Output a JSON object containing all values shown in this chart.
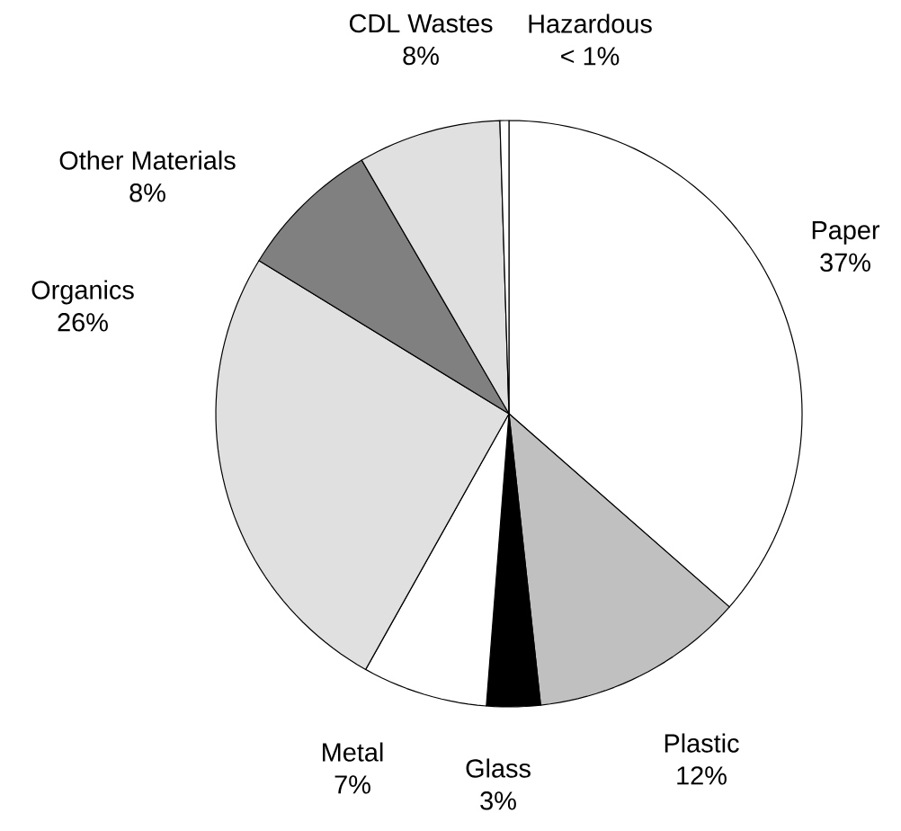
{
  "chart_data": {
    "type": "pie",
    "categories": [
      "Paper",
      "Plastic",
      "Glass",
      "Metal",
      "Organics",
      "Other Materials",
      "CDL Wastes",
      "Hazardous"
    ],
    "values": [
      37,
      12,
      3,
      7,
      26,
      8,
      8,
      0.5
    ],
    "value_labels": [
      "37%",
      "12%",
      "3%",
      "7%",
      "26%",
      "8%",
      "8%",
      "< 1%"
    ],
    "colors": [
      "#ffffff",
      "#c0c0c0",
      "#000000",
      "#ffffff",
      "#e0e0e0",
      "#808080",
      "#e0e0e0",
      "#ffffff"
    ]
  }
}
